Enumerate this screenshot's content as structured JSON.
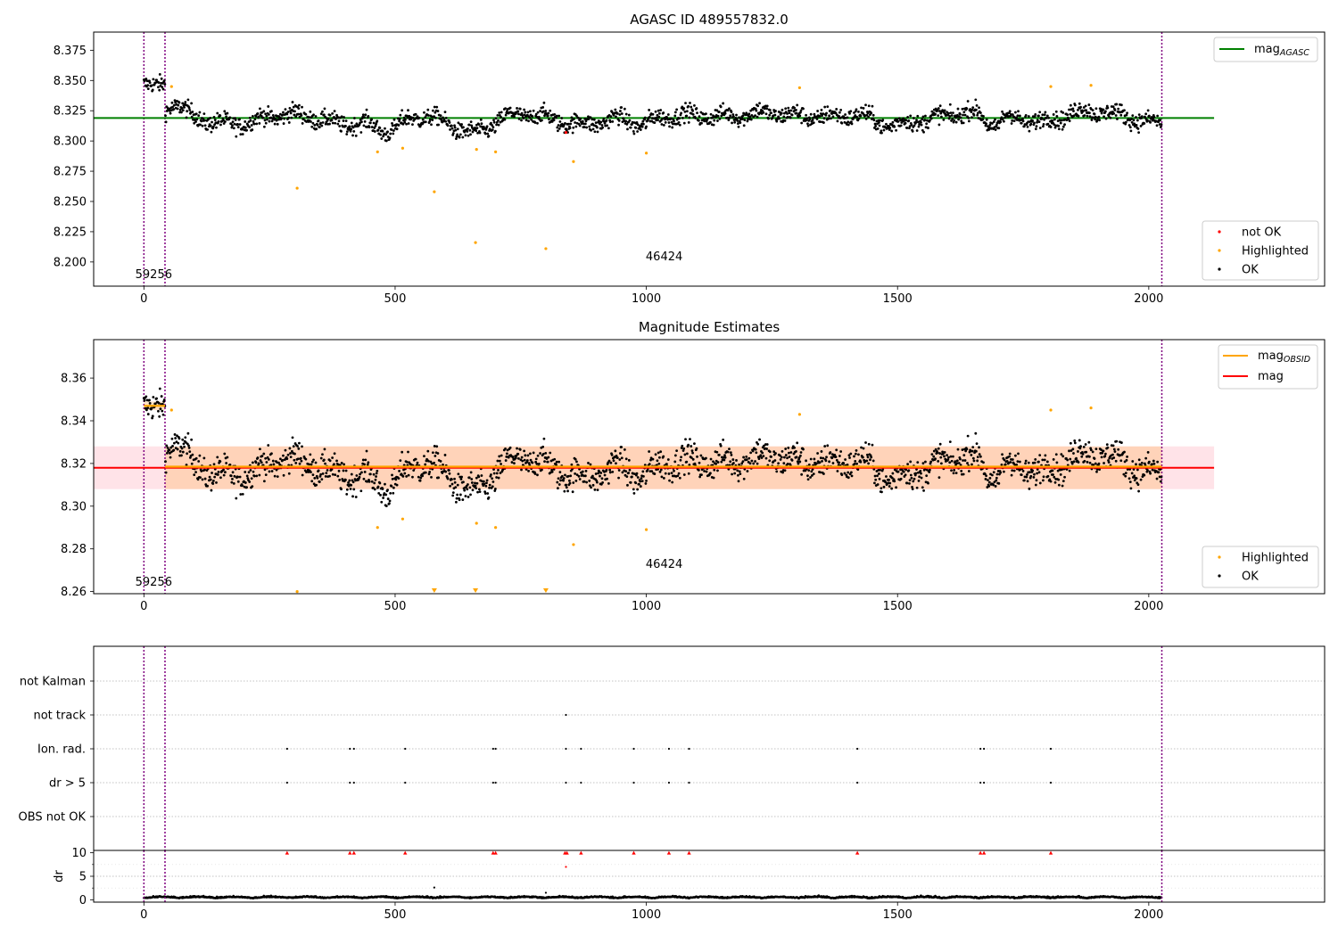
{
  "colors": {
    "ok": "#000000",
    "highlighted": "#ffa500",
    "not_ok": "#ff0000",
    "agasc_line": "#008000",
    "obsid_line": "#ffa500",
    "mag_line": "#ff0000",
    "band_fill": "#ffc0cb",
    "obsid_band_fill": "#ffbf80",
    "epoch_line": "#800080"
  },
  "epoch_markers": {
    "x": [
      0,
      42,
      2026
    ],
    "labels": [
      {
        "x": 0,
        "text": "59256",
        "panel": 0
      },
      {
        "x": 1000,
        "text": "46424",
        "panel": 0
      },
      {
        "x": 0,
        "text": "59256",
        "panel": 1
      },
      {
        "x": 1000,
        "text": "46424",
        "panel": 1
      }
    ]
  },
  "chart_data": [
    {
      "type": "scatter",
      "title": "AGASC ID 489557832.0",
      "xlim": [
        -100,
        2350
      ],
      "ylim": [
        8.18,
        8.39
      ],
      "xticks": [
        "0",
        "500",
        "1000",
        "1500",
        "2000"
      ],
      "xtick_values": [
        0,
        500,
        1000,
        1500,
        2000
      ],
      "yticks": [
        "8.200",
        "8.225",
        "8.250",
        "8.275",
        "8.300",
        "8.325",
        "8.350",
        "8.375"
      ],
      "ytick_values": [
        8.2,
        8.225,
        8.25,
        8.275,
        8.3,
        8.325,
        8.35,
        8.375
      ],
      "mag_agasc": 8.319,
      "line_legend": {
        "name_main": "mag",
        "name_sub": "AGASC",
        "position": "upper right"
      },
      "scatter_legend": {
        "entries": [
          "not OK",
          "Highlighted",
          "OK"
        ],
        "position": "lower right"
      },
      "highlighted_points": [
        [
          55,
          8.345
        ],
        [
          305,
          8.261
        ],
        [
          465,
          8.291
        ],
        [
          515,
          8.294
        ],
        [
          578,
          8.258
        ],
        [
          660,
          8.216
        ],
        [
          662,
          8.293
        ],
        [
          700,
          8.291
        ],
        [
          800,
          8.211
        ],
        [
          855,
          8.283
        ],
        [
          1000,
          8.29
        ],
        [
          1305,
          8.344
        ],
        [
          1805,
          8.345
        ],
        [
          1885,
          8.346
        ]
      ],
      "not_ok_points": [
        [
          840,
          8.307
        ]
      ]
    },
    {
      "type": "scatter",
      "title": "Magnitude Estimates",
      "xlim": [
        -100,
        2350
      ],
      "ylim": [
        8.259,
        8.378
      ],
      "xticks": [
        "0",
        "500",
        "1000",
        "1500",
        "2000"
      ],
      "xtick_values": [
        0,
        500,
        1000,
        1500,
        2000
      ],
      "yticks": [
        "8.26",
        "8.28",
        "8.30",
        "8.32",
        "8.34",
        "8.36"
      ],
      "ytick_values": [
        8.26,
        8.28,
        8.3,
        8.32,
        8.34,
        8.36
      ],
      "mag": 8.318,
      "mag_band": [
        8.308,
        8.328
      ],
      "obsid_segments": [
        {
          "x": [
            0,
            42
          ],
          "mag": 8.347,
          "band": [
            8.345,
            8.349
          ]
        },
        {
          "x": [
            42,
            2026
          ],
          "mag": 8.3185,
          "band": [
            8.308,
            8.328
          ]
        }
      ],
      "line_legend": {
        "entries": [
          {
            "name_main": "mag",
            "name_sub": "OBSID"
          },
          {
            "name_main": "mag",
            "name_sub": ""
          }
        ],
        "position": "upper right"
      },
      "scatter_legend": {
        "entries": [
          "Highlighted",
          "OK"
        ],
        "position": "lower right"
      },
      "highlighted_points": [
        [
          55,
          8.345
        ],
        [
          305,
          8.26
        ],
        [
          465,
          8.29
        ],
        [
          515,
          8.294
        ],
        [
          662,
          8.292
        ],
        [
          700,
          8.29
        ],
        [
          855,
          8.282
        ],
        [
          1000,
          8.289
        ],
        [
          1305,
          8.343
        ],
        [
          1805,
          8.345
        ],
        [
          1885,
          8.346
        ]
      ],
      "below_limit_markers": [
        578,
        660,
        800
      ]
    },
    {
      "type": "scatter",
      "title": "",
      "xlim": [
        -100,
        2350
      ],
      "categories": [
        "not Kalman",
        "not track",
        "Ion. rad.",
        "dr > 5",
        "OBS not OK"
      ],
      "flags": {
        "not Kalman": [],
        "not track": [
          840
        ],
        "Ion. rad.": [
          285,
          410,
          418,
          520,
          695,
          700,
          840,
          870,
          975,
          1045,
          1085,
          1420,
          1665,
          1672,
          1805
        ],
        "dr > 5": [
          285,
          410,
          418,
          520,
          695,
          700,
          840,
          870,
          975,
          1045,
          1085,
          1420,
          1665,
          1672,
          1805
        ],
        "OBS not OK": []
      }
    },
    {
      "type": "scatter",
      "title": "",
      "xlim": [
        -100,
        2350
      ],
      "ylim": [
        -0.5,
        10.5
      ],
      "ylabel": "dr",
      "xticks": [
        "0",
        "500",
        "1000",
        "1500",
        "2000"
      ],
      "xtick_values": [
        0,
        500,
        1000,
        1500,
        2000
      ],
      "yticks": [
        "0",
        "5",
        "10"
      ],
      "ytick_values": [
        0,
        5,
        10
      ],
      "clipped_points_x": [
        285,
        410,
        418,
        520,
        695,
        700,
        838,
        842,
        870,
        975,
        1045,
        1085,
        1420,
        1665,
        1672,
        1805
      ],
      "extra_not_ok_points": [
        [
          840,
          7.0
        ]
      ],
      "outlier_ok_points": [
        [
          578,
          2.6
        ],
        [
          800,
          1.5
        ]
      ]
    }
  ]
}
